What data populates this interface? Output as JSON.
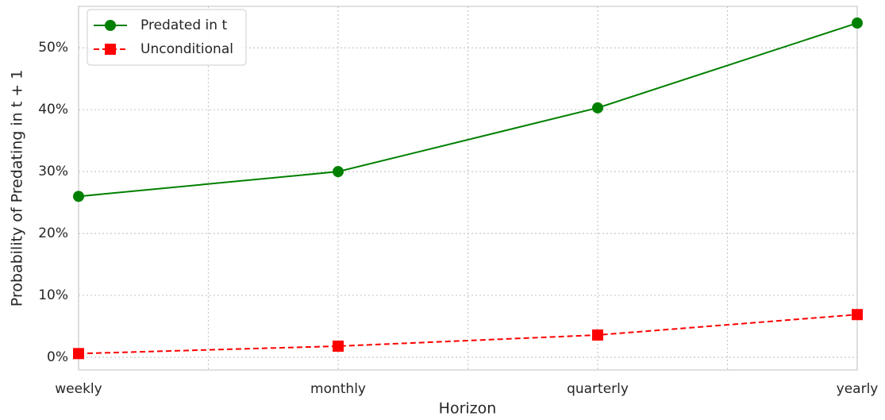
{
  "chart_data": {
    "type": "line",
    "categories": [
      "weekly",
      "monthly",
      "quarterly",
      "yearly"
    ],
    "series": [
      {
        "name": "Predated in t",
        "color": "#008000",
        "marker": "circle",
        "linestyle": "solid",
        "values": [
          26,
          30,
          40.3,
          54
        ]
      },
      {
        "name": "Unconditional",
        "color": "#ff0000",
        "marker": "square",
        "linestyle": "dashed",
        "values": [
          0.6,
          1.8,
          3.6,
          6.9
        ]
      }
    ],
    "ylim": [
      -2.05,
      56.7
    ],
    "yticks": [
      {
        "value": 0,
        "label": "0%"
      },
      {
        "value": 10,
        "label": "10%"
      },
      {
        "value": 20,
        "label": "20%"
      },
      {
        "value": 30,
        "label": "30%"
      },
      {
        "value": 40,
        "label": "40%"
      },
      {
        "value": 50,
        "label": "50%"
      }
    ],
    "xlabel": "Horizon",
    "ylabel": "Probability of Predating in t + 1",
    "grid": true,
    "legend": "upper left"
  }
}
